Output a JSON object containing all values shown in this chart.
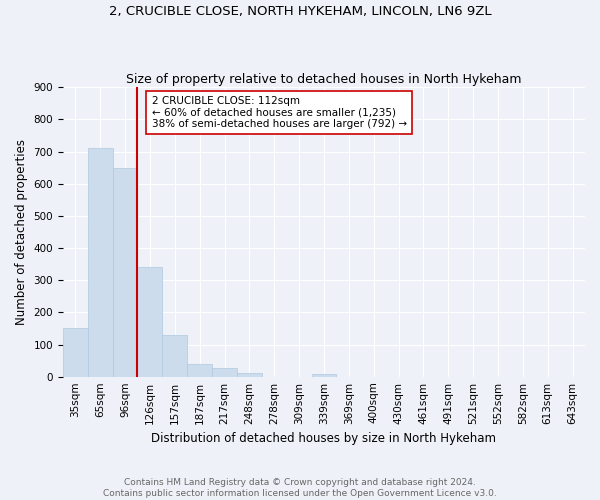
{
  "title": "2, CRUCIBLE CLOSE, NORTH HYKEHAM, LINCOLN, LN6 9ZL",
  "subtitle": "Size of property relative to detached houses in North Hykeham",
  "xlabel": "Distribution of detached houses by size in North Hykeham",
  "ylabel": "Number of detached properties",
  "categories": [
    "35sqm",
    "65sqm",
    "96sqm",
    "126sqm",
    "157sqm",
    "187sqm",
    "217sqm",
    "248sqm",
    "278sqm",
    "309sqm",
    "339sqm",
    "369sqm",
    "400sqm",
    "430sqm",
    "461sqm",
    "491sqm",
    "521sqm",
    "552sqm",
    "582sqm",
    "613sqm",
    "643sqm"
  ],
  "values": [
    150,
    710,
    650,
    340,
    130,
    40,
    27,
    10,
    0,
    0,
    8,
    0,
    0,
    0,
    0,
    0,
    0,
    0,
    0,
    0,
    0
  ],
  "bar_color": "#cddcec",
  "bar_edgecolor": "#b0c8e0",
  "vline_x": 2.5,
  "vline_color": "#cc0000",
  "annotation_text": "2 CRUCIBLE CLOSE: 112sqm\n← 60% of detached houses are smaller (1,235)\n38% of semi-detached houses are larger (792) →",
  "annotation_box_color": "#ffffff",
  "annotation_box_edgecolor": "#cc0000",
  "ylim": [
    0,
    900
  ],
  "yticks": [
    0,
    100,
    200,
    300,
    400,
    500,
    600,
    700,
    800,
    900
  ],
  "footnote": "Contains HM Land Registry data © Crown copyright and database right 2024.\nContains public sector information licensed under the Open Government Licence v3.0.",
  "background_color": "#eef2f8",
  "grid_color": "#ffffff",
  "title_fontsize": 9.5,
  "subtitle_fontsize": 9,
  "axis_label_fontsize": 8.5,
  "tick_fontsize": 7.5,
  "annotation_fontsize": 7.5,
  "footnote_fontsize": 6.5
}
